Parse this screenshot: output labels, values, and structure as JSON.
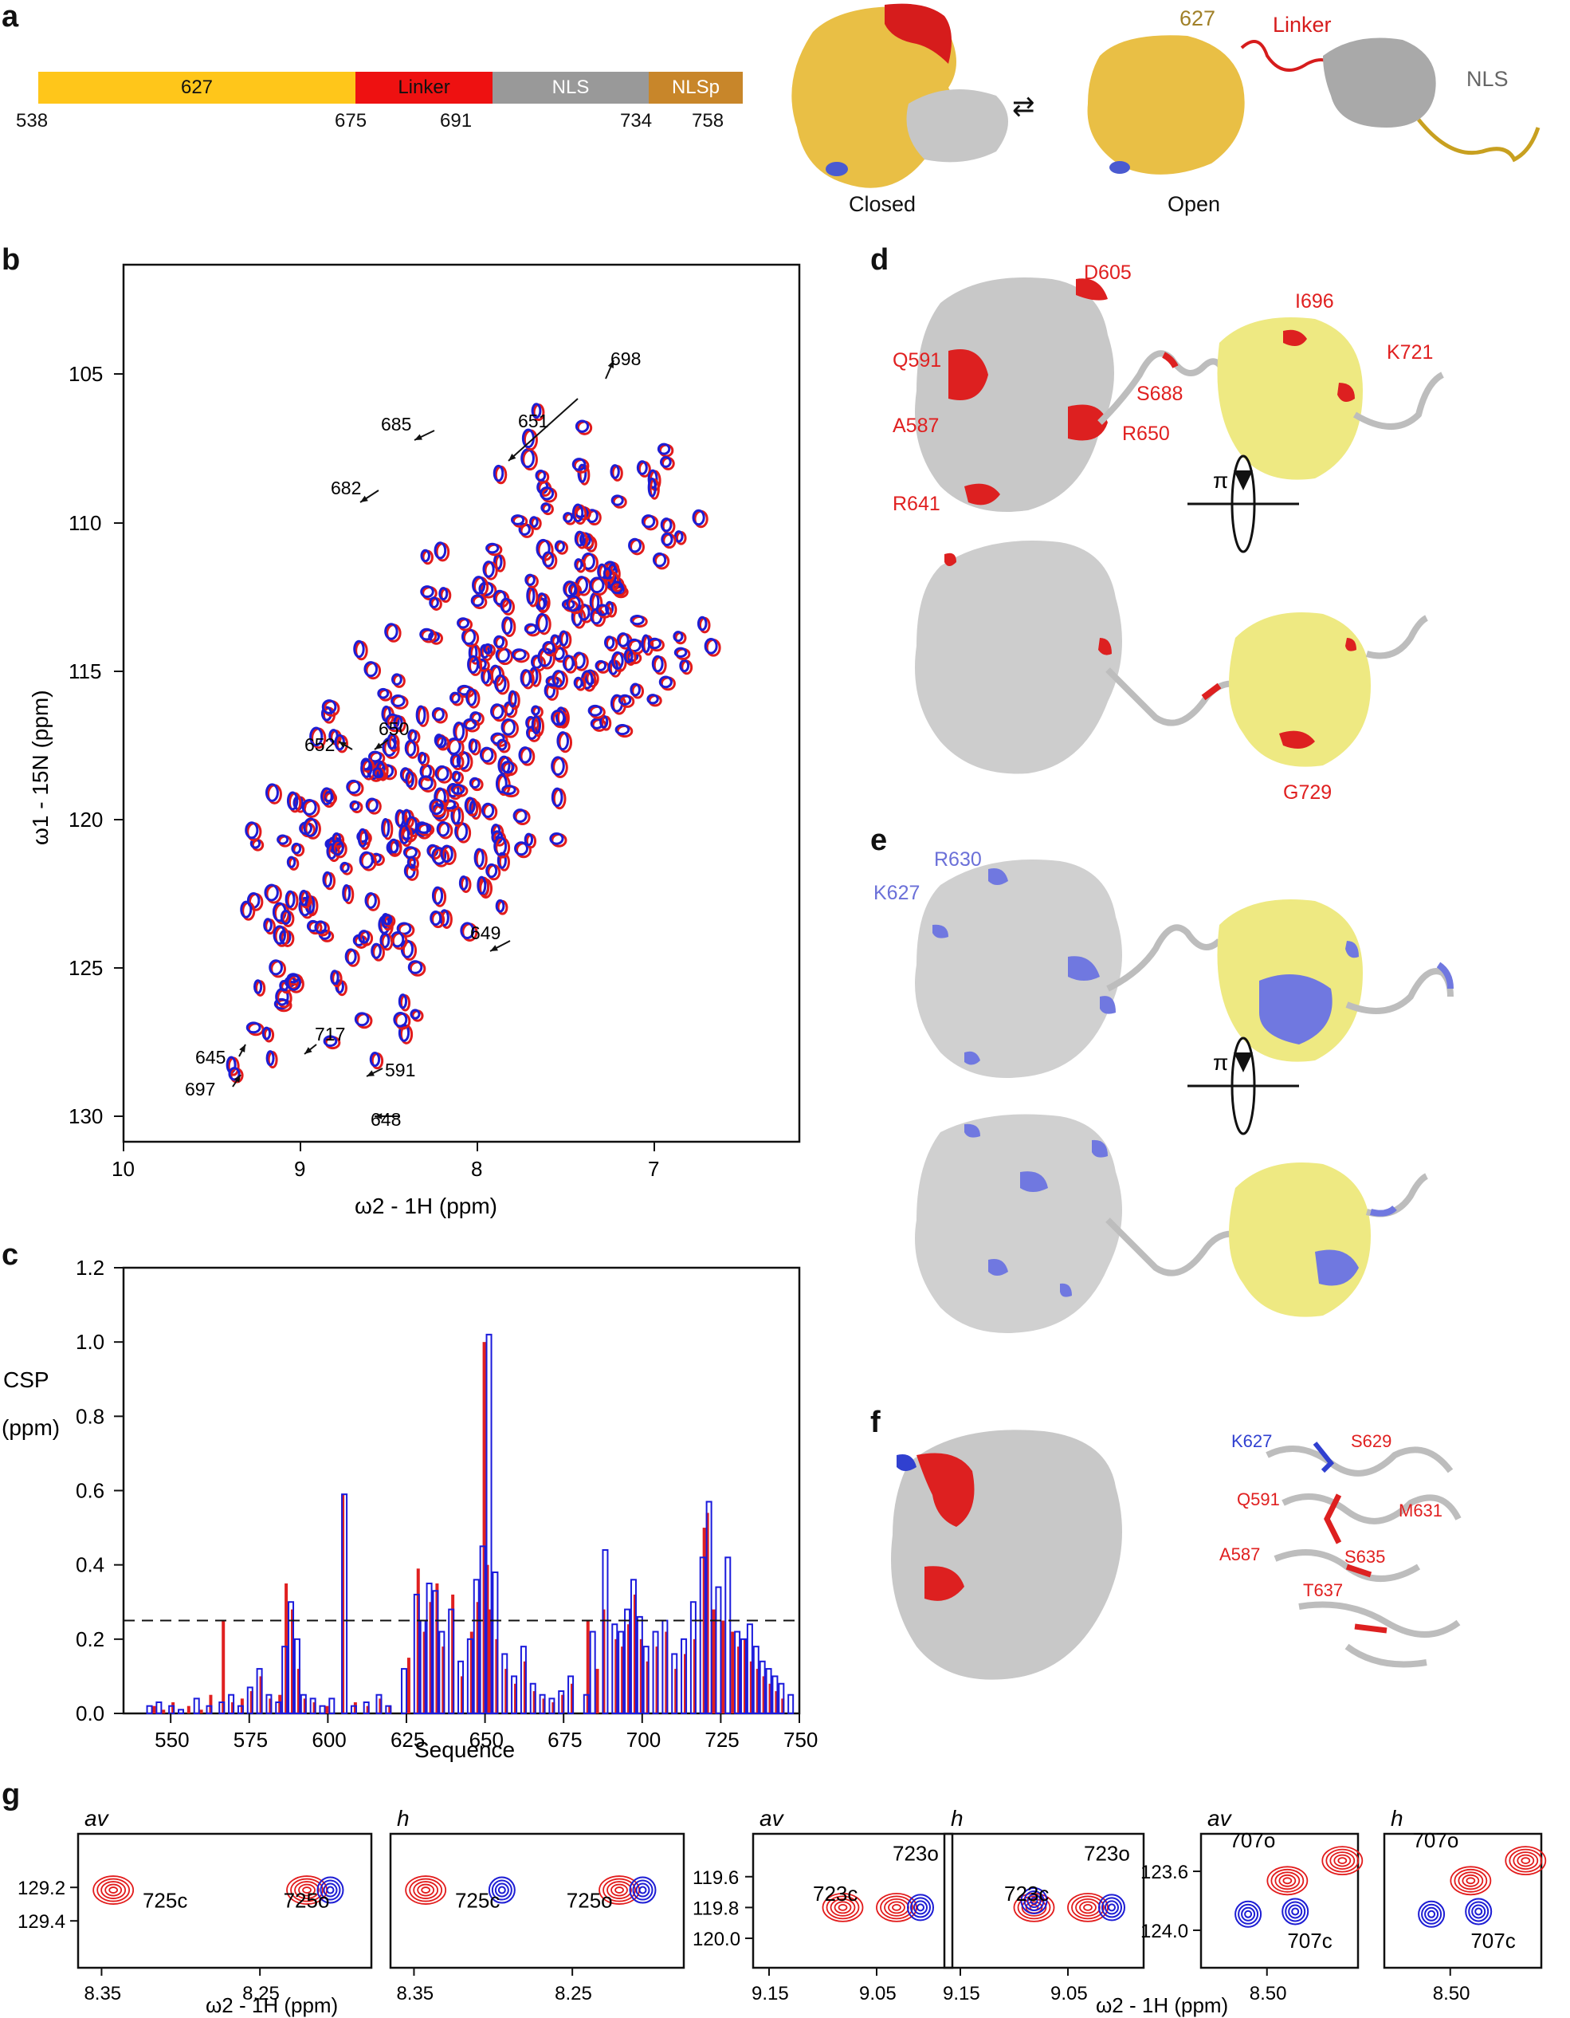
{
  "panel_labels": {
    "a": "a",
    "b": "b",
    "c": "c",
    "d": "d",
    "e": "e",
    "f": "f",
    "g": "g"
  },
  "domain_bar": {
    "segments": [
      {
        "label": "627",
        "color": "#ffc61a"
      },
      {
        "label": "Linker",
        "color": "#ee1111"
      },
      {
        "label": "NLS",
        "color": "#999999"
      },
      {
        "label": "NLSp",
        "color": "#c8862a"
      }
    ],
    "boundaries": [
      "538",
      "675",
      "691",
      "734",
      "758"
    ]
  },
  "structure_a": {
    "closed_label": "Closed",
    "open_label": "Open",
    "label_627": "627",
    "label_linker": "Linker",
    "label_nls": "NLS",
    "equilibrium_symbol": "⇄"
  },
  "spectrum_b": {
    "xlabel": "ω2 - 1H  (ppm)",
    "ylabel": "ω1 - 15N  (ppm)",
    "xticks": [
      "10",
      "9",
      "8",
      "7"
    ],
    "yticks": [
      "105",
      "110",
      "115",
      "120",
      "125",
      "130"
    ],
    "annotations": [
      "698",
      "685",
      "651",
      "682",
      "650",
      "652",
      "649",
      "645",
      "717",
      "591",
      "697",
      "648"
    ]
  },
  "chart_data": {
    "type": "bar",
    "title": "",
    "xlabel": "Sequence",
    "ylabel": "CSP (ppm)",
    "ylabel_top": "CSP",
    "ylabel_bottom": "(ppm)",
    "xlim": [
      535,
      750
    ],
    "ylim": [
      0,
      1.2
    ],
    "xticks": [
      "550",
      "575",
      "600",
      "625",
      "650",
      "675",
      "700",
      "725",
      "750"
    ],
    "yticks": [
      "0.0",
      "0.2",
      "0.4",
      "0.6",
      "0.8",
      "1.0",
      "1.2"
    ],
    "threshold": 0.25,
    "series": [
      {
        "name": "red",
        "color": "#e02020",
        "x": [
          545,
          548,
          551,
          556,
          560,
          563,
          567,
          570,
          573,
          576,
          579,
          582,
          585,
          587,
          589,
          591,
          593,
          596,
          600,
          605,
          609,
          613,
          617,
          620,
          626,
          629,
          631,
          633,
          635,
          637,
          640,
          643,
          646,
          648,
          650,
          651,
          652,
          654,
          657,
          660,
          663,
          666,
          669,
          672,
          675,
          678,
          683,
          686,
          688,
          692,
          694,
          696,
          698,
          700,
          702,
          705,
          708,
          711,
          714,
          717,
          720,
          721,
          723,
          726,
          729,
          731,
          733,
          735,
          737,
          739,
          741,
          743,
          745
        ],
        "values": [
          0.02,
          0.01,
          0.03,
          0.02,
          0.01,
          0.05,
          0.25,
          0.03,
          0.04,
          0.06,
          0.1,
          0.04,
          0.05,
          0.35,
          0.28,
          0.12,
          0.04,
          0.03,
          0.02,
          0.59,
          0.03,
          0.02,
          0.04,
          0.02,
          0.15,
          0.39,
          0.22,
          0.3,
          0.35,
          0.18,
          0.32,
          0.1,
          0.22,
          0.3,
          1.0,
          0.4,
          0.28,
          0.2,
          0.12,
          0.08,
          0.14,
          0.06,
          0.04,
          0.03,
          0.05,
          0.08,
          0.25,
          0.12,
          0.28,
          0.2,
          0.18,
          0.24,
          0.32,
          0.2,
          0.14,
          0.18,
          0.22,
          0.12,
          0.16,
          0.2,
          0.5,
          0.54,
          0.28,
          0.25,
          0.22,
          0.18,
          0.2,
          0.14,
          0.12,
          0.1,
          0.08,
          0.06,
          0.04
        ]
      },
      {
        "name": "blue",
        "color": "#1a1adc",
        "x": [
          543,
          546,
          550,
          553,
          558,
          562,
          566,
          569,
          572,
          575,
          578,
          581,
          584,
          586,
          588,
          590,
          592,
          595,
          598,
          601,
          605,
          608,
          612,
          616,
          619,
          624,
          628,
          630,
          632,
          634,
          636,
          639,
          642,
          645,
          647,
          649,
          651,
          653,
          656,
          659,
          662,
          665,
          668,
          671,
          674,
          677,
          682,
          684,
          688,
          691,
          693,
          695,
          697,
          699,
          701,
          704,
          707,
          710,
          713,
          716,
          719,
          721,
          724,
          727,
          730,
          732,
          734,
          736,
          738,
          740,
          742,
          744,
          747
        ],
        "values": [
          0.02,
          0.03,
          0.02,
          0.01,
          0.04,
          0.02,
          0.03,
          0.05,
          0.02,
          0.07,
          0.12,
          0.05,
          0.03,
          0.18,
          0.3,
          0.2,
          0.05,
          0.04,
          0.02,
          0.04,
          0.59,
          0.02,
          0.03,
          0.05,
          0.02,
          0.12,
          0.32,
          0.25,
          0.35,
          0.33,
          0.22,
          0.28,
          0.14,
          0.2,
          0.36,
          0.45,
          1.02,
          0.38,
          0.16,
          0.1,
          0.18,
          0.08,
          0.05,
          0.04,
          0.06,
          0.1,
          0.05,
          0.22,
          0.44,
          0.24,
          0.22,
          0.28,
          0.36,
          0.26,
          0.18,
          0.22,
          0.25,
          0.16,
          0.2,
          0.3,
          0.42,
          0.57,
          0.34,
          0.42,
          0.22,
          0.2,
          0.24,
          0.18,
          0.14,
          0.12,
          0.1,
          0.08,
          0.05
        ]
      }
    ]
  },
  "structure_d": {
    "labels": [
      "D605",
      "Q591",
      "A587",
      "R641",
      "R650",
      "S688",
      "I696",
      "K721",
      "G729"
    ],
    "rotation_symbol": "π"
  },
  "structure_e": {
    "labels": [
      "R630",
      "K627"
    ],
    "rotation_symbol": "π"
  },
  "structure_f": {
    "labels_blue": [
      "K627"
    ],
    "labels_red": [
      "S629",
      "Q591",
      "M631",
      "A587",
      "S635",
      "T637"
    ]
  },
  "panel_g": {
    "xlabel": "ω2 - 1H  (ppm)",
    "subpanels": [
      {
        "title": "av",
        "peaks": [
          "725c",
          "725o"
        ],
        "xticks": [
          "8.35",
          "8.25"
        ],
        "yticks": [
          "129.2",
          "129.4"
        ]
      },
      {
        "title": "h",
        "peaks": [
          "725c",
          "725o"
        ],
        "xticks": [
          "8.35",
          "8.25"
        ],
        "yticks": []
      },
      {
        "title": "av",
        "peaks": [
          "723c",
          "723o"
        ],
        "xticks": [
          "9.15",
          "9.05"
        ],
        "yticks": [
          "119.6",
          "119.8",
          "120.0"
        ]
      },
      {
        "title": "h",
        "peaks": [
          "723c",
          "723o"
        ],
        "xticks": [
          "9.15",
          "9.05"
        ],
        "yticks": []
      },
      {
        "title": "av",
        "peaks": [
          "707o",
          "707c"
        ],
        "xticks": [
          "8.50"
        ],
        "yticks": [
          "123.6",
          "124.0"
        ]
      },
      {
        "title": "h",
        "peaks": [
          "707o",
          "707c"
        ],
        "xticks": [
          "8.50"
        ],
        "yticks": []
      }
    ]
  }
}
